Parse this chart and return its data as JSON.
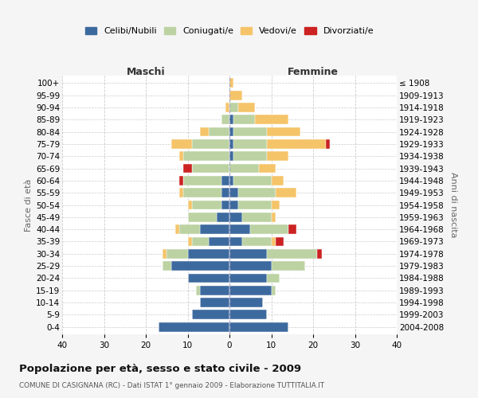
{
  "age_groups": [
    "0-4",
    "5-9",
    "10-14",
    "15-19",
    "20-24",
    "25-29",
    "30-34",
    "35-39",
    "40-44",
    "45-49",
    "50-54",
    "55-59",
    "60-64",
    "65-69",
    "70-74",
    "75-79",
    "80-84",
    "85-89",
    "90-94",
    "95-99",
    "100+"
  ],
  "birth_years": [
    "2004-2008",
    "1999-2003",
    "1994-1998",
    "1989-1993",
    "1984-1988",
    "1979-1983",
    "1974-1978",
    "1969-1973",
    "1964-1968",
    "1959-1963",
    "1954-1958",
    "1949-1953",
    "1944-1948",
    "1939-1943",
    "1934-1938",
    "1929-1933",
    "1924-1928",
    "1919-1923",
    "1914-1918",
    "1909-1913",
    "≤ 1908"
  ],
  "colors": {
    "celibi": "#3d6a9e",
    "coniugati": "#bcd2a2",
    "vedovi": "#f5c469",
    "divorziati": "#cc2222"
  },
  "males": {
    "celibi": [
      17,
      9,
      7,
      7,
      10,
      14,
      10,
      5,
      7,
      3,
      2,
      2,
      2,
      0,
      0,
      0,
      0,
      0,
      0,
      0,
      0
    ],
    "coniugati": [
      0,
      0,
      0,
      1,
      0,
      2,
      5,
      4,
      5,
      7,
      7,
      9,
      9,
      9,
      11,
      9,
      5,
      2,
      0,
      0,
      0
    ],
    "vedovi": [
      0,
      0,
      0,
      0,
      0,
      0,
      1,
      1,
      1,
      0,
      1,
      1,
      0,
      0,
      1,
      5,
      2,
      0,
      1,
      0,
      0
    ],
    "divorziati": [
      0,
      0,
      0,
      0,
      0,
      0,
      0,
      0,
      0,
      0,
      0,
      0,
      1,
      2,
      0,
      0,
      0,
      0,
      0,
      0,
      0
    ]
  },
  "females": {
    "celibi": [
      14,
      9,
      8,
      10,
      9,
      10,
      9,
      3,
      5,
      3,
      2,
      2,
      1,
      0,
      1,
      1,
      1,
      1,
      0,
      0,
      0
    ],
    "coniugati": [
      0,
      0,
      0,
      1,
      3,
      8,
      12,
      7,
      9,
      7,
      8,
      9,
      9,
      7,
      8,
      8,
      8,
      5,
      2,
      0,
      0
    ],
    "vedovi": [
      0,
      0,
      0,
      0,
      0,
      0,
      0,
      1,
      0,
      1,
      2,
      5,
      3,
      4,
      5,
      14,
      8,
      8,
      4,
      3,
      1
    ],
    "divorziati": [
      0,
      0,
      0,
      0,
      0,
      0,
      1,
      2,
      2,
      0,
      0,
      0,
      0,
      0,
      0,
      1,
      0,
      0,
      0,
      0,
      0
    ]
  },
  "xlim": [
    -40,
    40
  ],
  "xticks": [
    -40,
    -30,
    -20,
    -10,
    0,
    10,
    20,
    30,
    40
  ],
  "xticklabels": [
    "40",
    "30",
    "20",
    "10",
    "0",
    "10",
    "20",
    "30",
    "40"
  ],
  "title": "Popolazione per età, sesso e stato civile - 2009",
  "subtitle": "COMUNE DI CASIGNANA (RC) - Dati ISTAT 1° gennaio 2009 - Elaborazione TUTTITALIA.IT",
  "ylabel_left": "Fasce di età",
  "ylabel_right": "Anni di nascita",
  "label_maschi": "Maschi",
  "label_femmine": "Femmine",
  "legend_labels": [
    "Celibi/Nubili",
    "Coniugati/e",
    "Vedovi/e",
    "Divorziati/e"
  ],
  "bg_color": "#f5f5f5",
  "plot_bg_color": "#ffffff"
}
